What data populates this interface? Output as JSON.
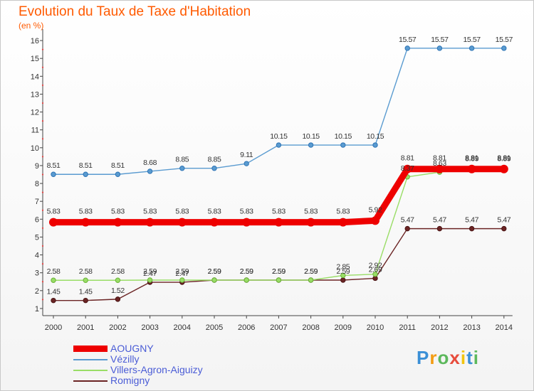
{
  "chart_data": {
    "type": "line",
    "title": "Evolution du Taux de Taxe d'Habitation",
    "subtitle": "(en %)",
    "x": [
      "2000",
      "2001",
      "2002",
      "2003",
      "2004",
      "2005",
      "2006",
      "2007",
      "2008",
      "2009",
      "2010",
      "2011",
      "2012",
      "2013",
      "2014"
    ],
    "yticks": [
      1,
      2,
      3,
      4,
      5,
      6,
      7,
      8,
      9,
      10,
      11,
      12,
      13,
      14,
      15,
      16
    ],
    "ylim": [
      0.6,
      16.4
    ],
    "grid": false,
    "legend_position": "bottom-left",
    "series": [
      {
        "name": "AOUGNY",
        "color": "#ee0000",
        "values": [
          5.83,
          5.83,
          5.83,
          5.83,
          5.83,
          5.83,
          5.83,
          5.83,
          5.83,
          5.83,
          5.92,
          8.81,
          8.81,
          8.81,
          8.81
        ],
        "labels": [
          "5.83",
          "5.83",
          "5.83",
          "5.83",
          "5.83",
          "5.83",
          "5.83",
          "5.83",
          "5.83",
          "5.83",
          "5.92",
          "8.81",
          "8.81",
          "8.81",
          "8.81"
        ]
      },
      {
        "name": "Vézilly",
        "color": "#5a9bd0",
        "values": [
          8.51,
          8.51,
          8.51,
          8.68,
          8.85,
          8.85,
          9.11,
          10.15,
          10.15,
          10.15,
          10.15,
          15.57,
          15.57,
          15.57,
          15.57
        ],
        "labels": [
          "8.51",
          "8.51",
          "8.51",
          "8.68",
          "8.85",
          "8.85",
          "9.11",
          "10.15",
          "10.15",
          "10.15",
          "10.15",
          "15.57",
          "15.57",
          "15.57",
          "15.57"
        ]
      },
      {
        "name": "Villers-Agron-Aiguizy",
        "color": "#99dd66",
        "values": [
          2.58,
          2.58,
          2.58,
          2.59,
          2.59,
          2.59,
          2.59,
          2.59,
          2.59,
          2.85,
          2.92,
          8.37,
          8.63,
          8.89,
          8.89
        ],
        "labels": [
          "2.58",
          "2.58",
          "2.58",
          "2.59",
          "2.59",
          "2.59",
          "2.59",
          "2.59",
          "2.59",
          "2.85",
          "2.92",
          "8.37",
          "8.63",
          "8.89",
          "8.89"
        ]
      },
      {
        "name": "Romigny",
        "color": "#6b2424",
        "values": [
          1.45,
          1.45,
          1.52,
          2.47,
          2.47,
          2.59,
          2.59,
          2.59,
          2.59,
          2.59,
          2.69,
          5.47,
          5.47,
          5.47,
          5.47
        ],
        "labels": [
          "1.45",
          "1.45",
          "1.52",
          "2.47",
          "2.47",
          "2.59",
          "2.59",
          "2.59",
          "2.59",
          "2.59",
          "2.69",
          "5.47",
          "5.47",
          "5.47",
          "5.47"
        ]
      }
    ]
  },
  "brand": {
    "parts": [
      "P",
      "r",
      "o",
      "x",
      "i",
      "t",
      "i"
    ],
    "colors": [
      "#3a8fd6",
      "#f39c12",
      "#5cb85c",
      "#e74c3c",
      "#f1c40f",
      "#3a8fd6",
      "#5cb85c"
    ]
  }
}
